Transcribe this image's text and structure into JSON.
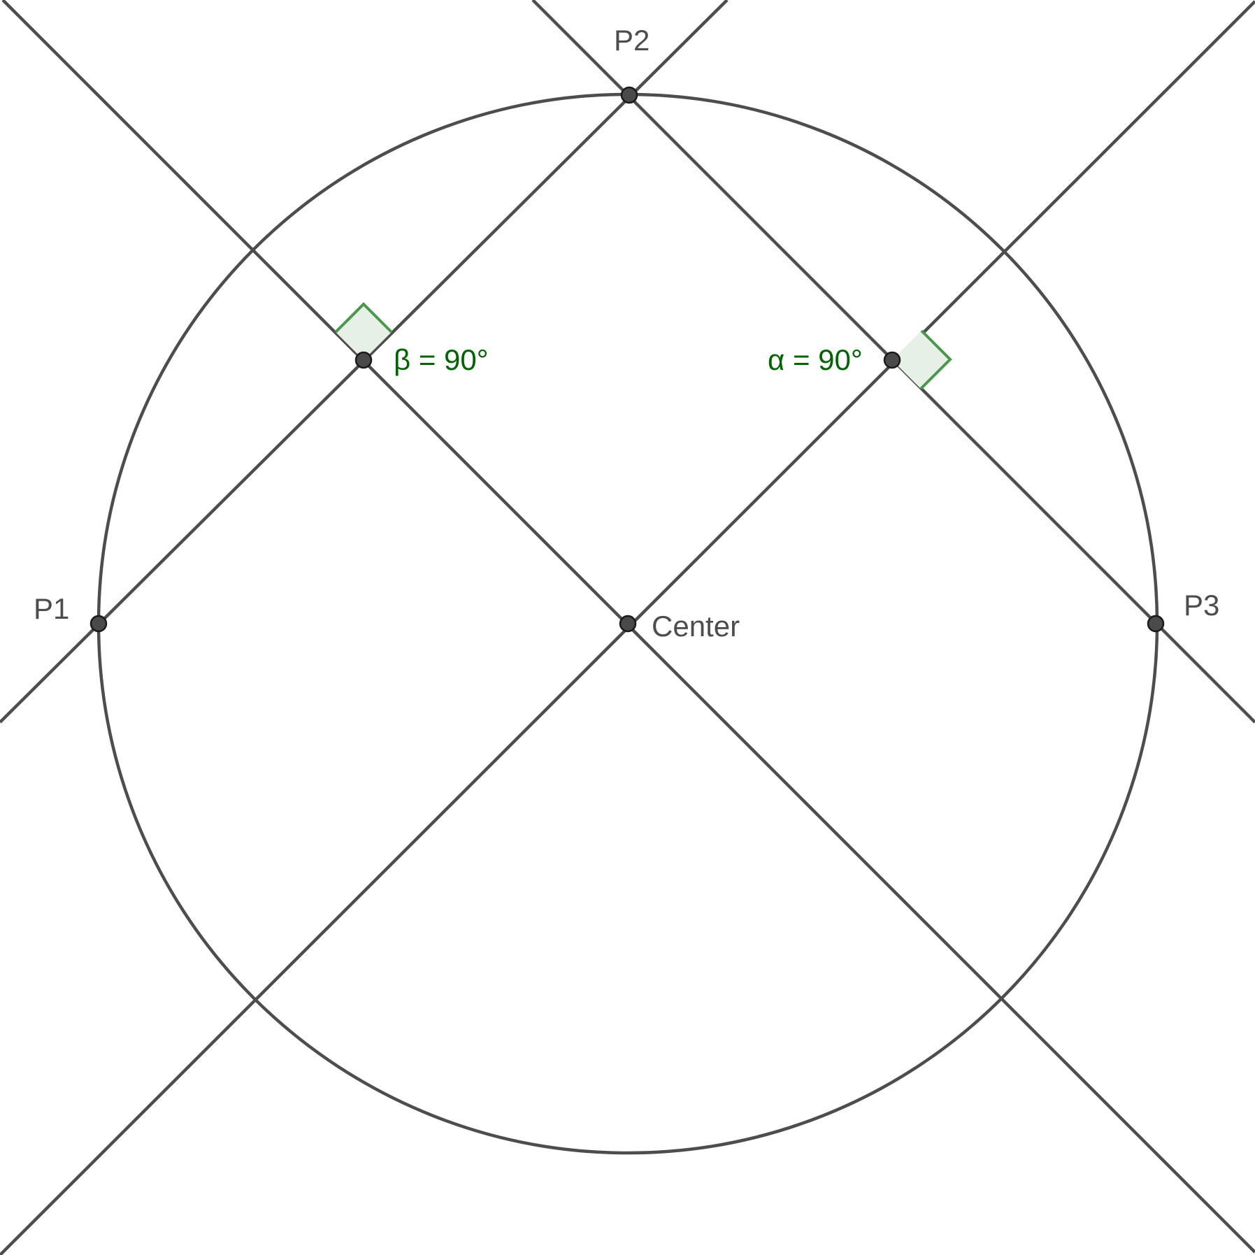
{
  "diagram": {
    "points": {
      "p1": "P1",
      "p2": "P2",
      "p3": "P3",
      "center": "Center"
    },
    "angles": {
      "beta": "β = 90°",
      "alpha": "α = 90°"
    },
    "colors": {
      "line": "#4d4d4d",
      "angle_text": "#006400",
      "angle_marker": "#4a994a",
      "angle_fill": "#e6f0e6"
    }
  }
}
